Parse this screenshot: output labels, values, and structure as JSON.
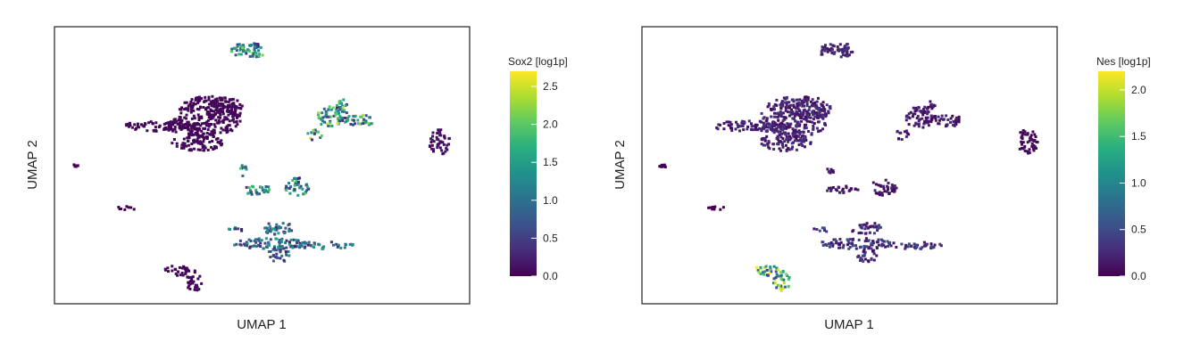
{
  "chart_data": [
    {
      "type": "scatter",
      "title": "",
      "xlabel": "UMAP 1",
      "ylabel": "UMAP 2",
      "legend_title": "Sox2 [log1p]",
      "legend_placement": "right",
      "colormap": "viridis",
      "color_range": [
        0,
        2.7
      ],
      "legend_ticks": [
        "0.0",
        "0.5",
        "1.0",
        "1.5",
        "2.0",
        "2.5"
      ],
      "grid": false,
      "clusters": [
        {
          "id": "top-small",
          "level": 1.2
        },
        {
          "id": "big-left",
          "level": 0.05
        },
        {
          "id": "tiny-left",
          "level": 0.0
        },
        {
          "id": "right-mid",
          "level": 1.4
        },
        {
          "id": "far-right",
          "level": 0.1
        },
        {
          "id": "center-mid",
          "level": 1.1
        },
        {
          "id": "small-left-mid",
          "level": 0.0
        },
        {
          "id": "center-low",
          "level": 0.9
        },
        {
          "id": "bottom-left",
          "level": 0.05
        }
      ]
    },
    {
      "type": "scatter",
      "title": "",
      "xlabel": "UMAP 1",
      "ylabel": "UMAP 2",
      "legend_title": "Nes [log1p]",
      "legend_placement": "right",
      "colormap": "viridis",
      "color_range": [
        0,
        2.2
      ],
      "legend_ticks": [
        "0.0",
        "0.5",
        "1.0",
        "1.5",
        "2.0"
      ],
      "grid": false,
      "clusters": [
        {
          "id": "top-small",
          "level": 0.2
        },
        {
          "id": "big-left",
          "level": 0.2
        },
        {
          "id": "tiny-left",
          "level": 0.0
        },
        {
          "id": "right-mid",
          "level": 0.15
        },
        {
          "id": "far-right",
          "level": 0.05
        },
        {
          "id": "center-mid",
          "level": 0.15
        },
        {
          "id": "small-left-mid",
          "level": 0.0
        },
        {
          "id": "center-low",
          "level": 0.3
        },
        {
          "id": "bottom-left",
          "level": 1.3
        }
      ]
    }
  ]
}
